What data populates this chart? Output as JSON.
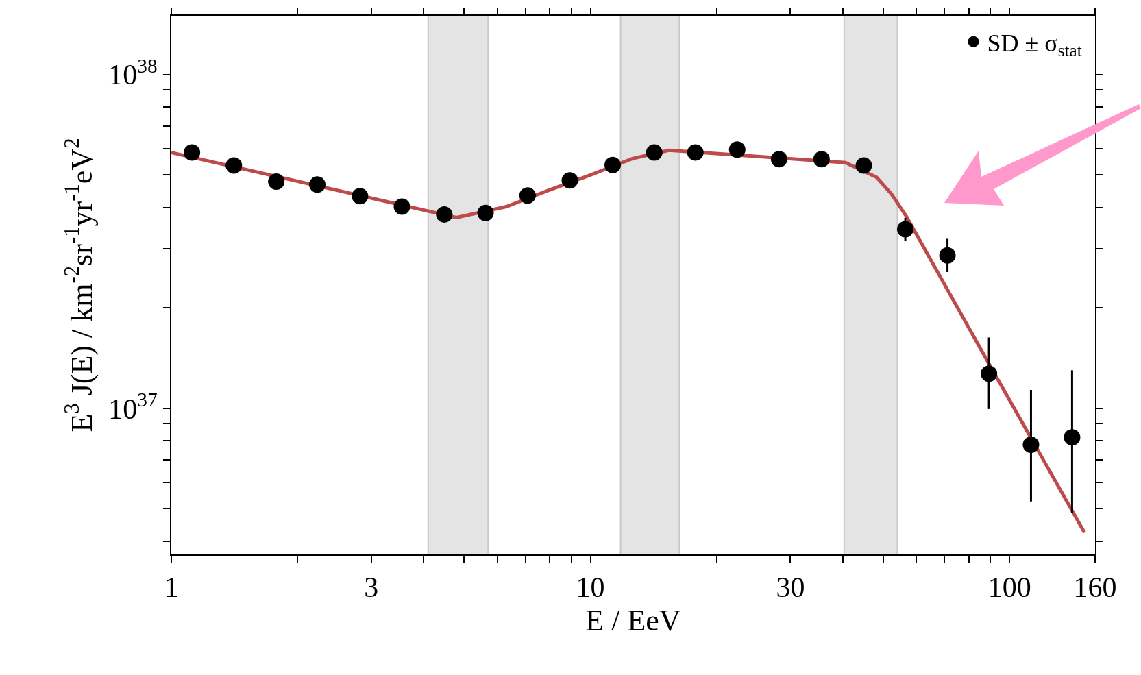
{
  "chart_data": {
    "type": "scatter",
    "xlabel": "E / EeV",
    "ylabel": "E$^{3}$ J(E) / km$^{-2}$sr$^{-1}$yr$^{-1}$eV$^{2}$",
    "log": "xy",
    "grid": false,
    "legend": "top right",
    "xlim": [
      1,
      160
    ],
    "ylim": [
      3.65e+36,
      1.5e+38
    ],
    "xticks": [
      1,
      {
        "value": 2,
        "label": null
      },
      3,
      {
        "value": 4,
        "label": null
      },
      {
        "value": 5,
        "label": null
      },
      {
        "value": 6,
        "label": null
      },
      {
        "value": 7,
        "label": null
      },
      {
        "value": 8,
        "label": null
      },
      {
        "value": 9,
        "label": null
      },
      10,
      {
        "value": 20,
        "label": null
      },
      30,
      {
        "value": 40,
        "label": null
      },
      {
        "value": 50,
        "label": null
      },
      {
        "value": 60,
        "label": null
      },
      {
        "value": 70,
        "label": null
      },
      {
        "value": 80,
        "label": null
      },
      {
        "value": 90,
        "label": null
      },
      100,
      160
    ],
    "yticks": [
      {
        "value": 4e+36,
        "label": null
      },
      {
        "value": 5e+36,
        "label": null
      },
      {
        "value": 6e+36,
        "label": null
      },
      {
        "value": 7e+36,
        "label": null
      },
      {
        "value": 8e+36,
        "label": null
      },
      {
        "value": 9e+36,
        "label": null
      },
      {
        "value": 1e+37,
        "label": "10$^{37}$"
      },
      {
        "value": 2e+37,
        "label": null
      },
      {
        "value": 3e+37,
        "label": null
      },
      {
        "value": 4e+37,
        "label": null
      },
      {
        "value": 5e+37,
        "label": null
      },
      {
        "value": 6e+37,
        "label": null
      },
      {
        "value": 7e+37,
        "label": null
      },
      {
        "value": 8e+37,
        "label": null
      },
      {
        "value": 9e+37,
        "label": null
      },
      {
        "value": 1e+38,
        "label": "10$^{38}$"
      }
    ],
    "bands": [
      {
        "axis": "x",
        "from": 4.1,
        "to": 5.7,
        "color": "#e4e4e4"
      },
      {
        "axis": "x",
        "from": 11.8,
        "to": 16.3,
        "color": "#e4e4e4"
      },
      {
        "axis": "x",
        "from": 40.3,
        "to": 54,
        "color": "#e4e4e4"
      }
    ],
    "series": [
      {
        "type": "line",
        "color": "#bd4b4b",
        "line_style": "solid",
        "x": [
          1,
          4.79,
          6.3,
          7.95,
          10,
          12.6,
          15.4,
          40.6,
          48.2,
          52.3,
          56.8,
          89.3,
          151
        ],
        "values": [
          5.84e+37,
          3.73e+37,
          4.02e+37,
          4.5e+37,
          5e+37,
          5.6e+37,
          5.93e+37,
          5.45e+37,
          4.92e+37,
          4.38e+37,
          3.75e+37,
          1.36e+37,
          4.24e+36
        ]
      },
      {
        "name": "SD ± σ$_{stat}$",
        "color": "#000000",
        "marker": "circle",
        "x": [
          1.12,
          1.41,
          1.78,
          2.23,
          2.82,
          3.55,
          4.48,
          5.62,
          7.08,
          8.93,
          11.3,
          14.2,
          17.8,
          22.4,
          28.2,
          35.6,
          44.9,
          56.4,
          71.1,
          89.3,
          112.5,
          141
        ],
        "values": [
          5.84e+37,
          5.34e+37,
          4.78e+37,
          4.68e+37,
          4.32e+37,
          4.02e+37,
          3.81e+37,
          3.85e+37,
          4.34e+37,
          4.82e+37,
          5.36e+37,
          5.84e+37,
          5.84e+37,
          5.96e+37,
          5.58e+37,
          5.58e+37,
          5.34e+37,
          3.44e+37,
          2.87e+37,
          1.27e+37,
          7.78e+36,
          8.18e+36
        ],
        "errors": [
          null,
          null,
          null,
          null,
          null,
          null,
          null,
          null,
          null,
          null,
          null,
          null,
          null,
          null,
          null,
          null,
          null,
          [
            3.18e+37,
            3.72e+37
          ],
          [
            2.56e+37,
            3.22e+37
          ],
          [
            9.95e+36,
            1.63e+37
          ],
          [
            5.26e+36,
            1.135e+37
          ],
          [
            4.85e+36,
            1.3e+37
          ]
        ]
      }
    ]
  }
}
